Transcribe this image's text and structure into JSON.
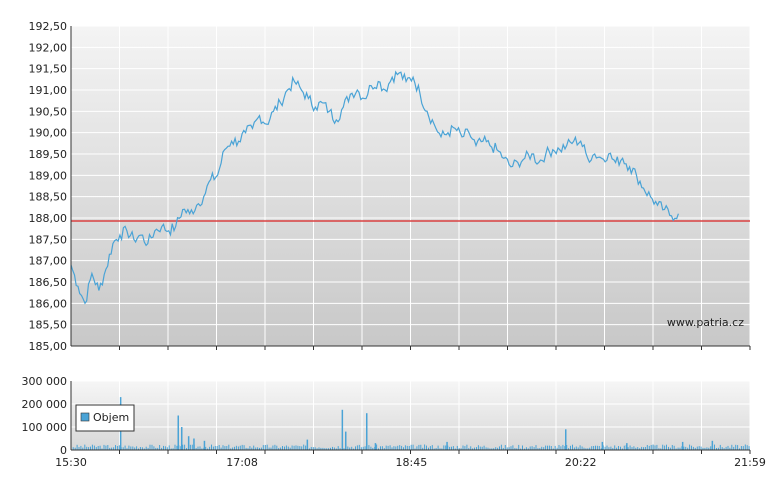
{
  "chart_data": [
    {
      "type": "line",
      "title": "",
      "xlabel": "",
      "ylabel": "",
      "ylim": [
        185.0,
        192.5
      ],
      "y_ticks": [
        "185,00",
        "185,50",
        "186,00",
        "186,50",
        "187,00",
        "187,50",
        "188,00",
        "188,50",
        "189,00",
        "189,50",
        "190,00",
        "190,50",
        "191,00",
        "191,50",
        "192,00",
        "192,50"
      ],
      "x_ticks": [
        "15:30",
        "17:08",
        "18:45",
        "20:22",
        "21:59"
      ],
      "reference_line": {
        "value": 187.93,
        "color": "#d94040"
      },
      "watermark": "www.patria.cz",
      "grid": true,
      "series": [
        {
          "color": "#4aa3d6",
          "points": [
            [
              "15:30",
              186.9
            ],
            [
              "15:34",
              186.4
            ],
            [
              "15:38",
              186.0
            ],
            [
              "15:42",
              186.7
            ],
            [
              "15:46",
              186.3
            ],
            [
              "15:50",
              186.8
            ],
            [
              "15:54",
              187.4
            ],
            [
              "15:58",
              187.6
            ],
            [
              "16:02",
              187.7
            ],
            [
              "16:06",
              187.5
            ],
            [
              "16:10",
              187.6
            ],
            [
              "16:14",
              187.4
            ],
            [
              "16:18",
              187.7
            ],
            [
              "16:22",
              187.8
            ],
            [
              "16:26",
              187.7
            ],
            [
              "16:30",
              187.8
            ],
            [
              "16:34",
              188.2
            ],
            [
              "16:38",
              188.1
            ],
            [
              "16:42",
              188.3
            ],
            [
              "16:46",
              188.5
            ],
            [
              "16:50",
              188.9
            ],
            [
              "16:54",
              189.0
            ],
            [
              "16:58",
              189.6
            ],
            [
              "17:02",
              189.8
            ],
            [
              "17:06",
              189.8
            ],
            [
              "17:10",
              190.0
            ],
            [
              "17:14",
              190.1
            ],
            [
              "17:18",
              190.4
            ],
            [
              "17:22",
              190.2
            ],
            [
              "17:26",
              190.5
            ],
            [
              "17:30",
              190.7
            ],
            [
              "17:34",
              191.0
            ],
            [
              "17:38",
              191.2
            ],
            [
              "17:42",
              191.0
            ],
            [
              "17:46",
              190.8
            ],
            [
              "17:50",
              190.6
            ],
            [
              "17:54",
              190.7
            ],
            [
              "17:58",
              190.5
            ],
            [
              "18:02",
              190.3
            ],
            [
              "18:06",
              190.6
            ],
            [
              "18:10",
              190.9
            ],
            [
              "18:14",
              191.0
            ],
            [
              "18:18",
              190.8
            ],
            [
              "18:22",
              191.1
            ],
            [
              "18:26",
              191.2
            ],
            [
              "18:30",
              191.0
            ],
            [
              "18:34",
              191.3
            ],
            [
              "18:38",
              191.4
            ],
            [
              "18:42",
              191.2
            ],
            [
              "18:46",
              191.3
            ],
            [
              "18:50",
              190.9
            ],
            [
              "18:54",
              190.5
            ],
            [
              "18:58",
              190.2
            ],
            [
              "19:02",
              189.9
            ],
            [
              "19:06",
              190.0
            ],
            [
              "19:10",
              190.1
            ],
            [
              "19:14",
              189.9
            ],
            [
              "19:18",
              190.0
            ],
            [
              "19:22",
              189.7
            ],
            [
              "19:26",
              189.8
            ],
            [
              "19:30",
              189.7
            ],
            [
              "19:34",
              189.6
            ],
            [
              "19:38",
              189.4
            ],
            [
              "19:42",
              189.2
            ],
            [
              "19:46",
              189.3
            ],
            [
              "19:50",
              189.4
            ],
            [
              "19:54",
              189.5
            ],
            [
              "19:58",
              189.3
            ],
            [
              "20:02",
              189.5
            ],
            [
              "20:06",
              189.6
            ],
            [
              "20:10",
              189.6
            ],
            [
              "20:14",
              189.7
            ],
            [
              "20:18",
              189.8
            ],
            [
              "20:22",
              189.8
            ],
            [
              "20:26",
              189.4
            ],
            [
              "20:30",
              189.5
            ],
            [
              "20:34",
              189.4
            ],
            [
              "20:38",
              189.5
            ],
            [
              "20:42",
              189.3
            ],
            [
              "20:46",
              189.4
            ],
            [
              "20:50",
              189.2
            ],
            [
              "20:54",
              189.0
            ],
            [
              "20:58",
              188.7
            ],
            [
              "21:02",
              188.5
            ],
            [
              "21:06",
              188.3
            ],
            [
              "21:10",
              188.2
            ],
            [
              "21:14",
              188.05
            ],
            [
              "21:18",
              188.1
            ]
          ]
        }
      ]
    },
    {
      "type": "bar",
      "title": "",
      "xlabel": "",
      "ylabel": "",
      "ylim": [
        0,
        300000
      ],
      "y_ticks": [
        "0",
        "100 000",
        "200 000",
        "300 000"
      ],
      "x_ticks": [
        "15:30",
        "17:08",
        "18:45",
        "20:22",
        "21:59"
      ],
      "legend": {
        "label": "Objem",
        "position": "left",
        "color": "#4aa3d6"
      },
      "spikes": [
        [
          "15:58",
          230000
        ],
        [
          "16:31",
          150000
        ],
        [
          "16:33",
          100000
        ],
        [
          "16:37",
          60000
        ],
        [
          "16:40",
          50000
        ],
        [
          "16:46",
          40000
        ],
        [
          "17:45",
          45000
        ],
        [
          "18:05",
          175000
        ],
        [
          "18:07",
          80000
        ],
        [
          "18:19",
          160000
        ],
        [
          "18:24",
          30000
        ],
        [
          "19:05",
          35000
        ],
        [
          "20:13",
          90000
        ],
        [
          "20:34",
          35000
        ],
        [
          "20:48",
          30000
        ],
        [
          "21:20",
          35000
        ],
        [
          "21:37",
          40000
        ]
      ],
      "baseline_volume": 15000
    }
  ],
  "icons": {
    "legend_swatch": "volume-swatch-icon"
  }
}
